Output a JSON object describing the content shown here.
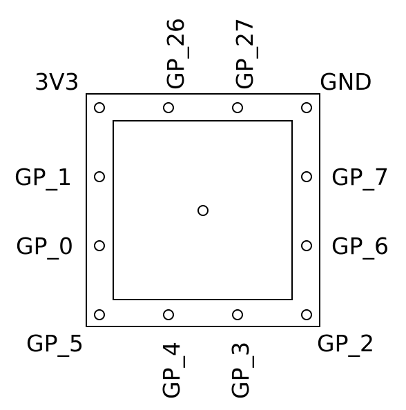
{
  "pins": {
    "top_left": "3V3",
    "top_1": "GP_26",
    "top_2": "GP_27",
    "top_right": "GND",
    "left_1": "GP_1",
    "left_2": "GP_0",
    "right_1": "GP_7",
    "right_2": "GP_6",
    "bottom_left": "GP_5",
    "bottom_1": "GP_4",
    "bottom_2": "GP_3",
    "bottom_right": "GP_2"
  }
}
